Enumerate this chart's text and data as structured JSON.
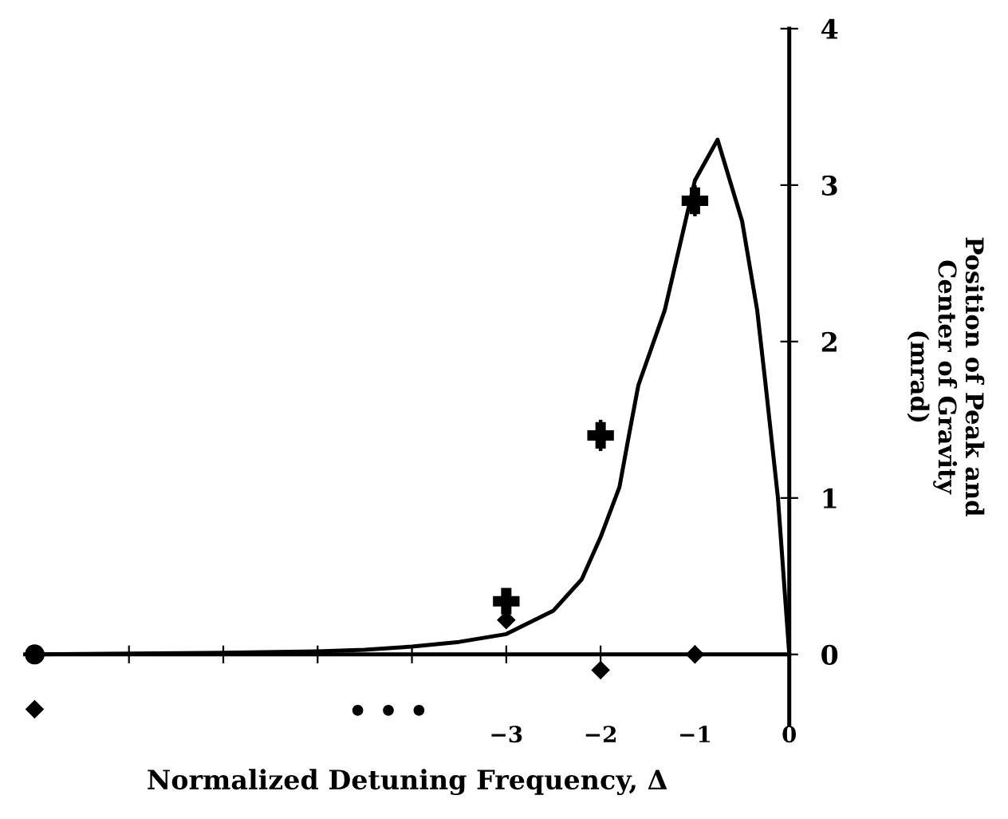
{
  "chart_data": {
    "type": "line",
    "xlabel": "Normalized Detuning Frequency, Δ",
    "ylabel": "Position of Peak and\nCenter of Gravity\n(mrad)",
    "series": [
      {
        "color": "#000000",
        "marker": "none",
        "line_style": "solid",
        "x": [
          -8,
          -6,
          -5,
          -4.5,
          -4,
          -3.5,
          -3,
          -2.5,
          -2.2,
          -2,
          -1.8,
          -1.7,
          -1.6,
          -1.32,
          -1,
          -0.76,
          -0.5,
          -0.34,
          -0.25,
          -0.12,
          0
        ],
        "values": [
          0,
          0.01,
          0.02,
          0.03,
          0.05,
          0.08,
          0.13,
          0.28,
          0.48,
          0.75,
          1.07,
          1.4,
          1.72,
          2.2,
          3.03,
          3.29,
          2.77,
          2.2,
          1.72,
          1.0,
          0
        ]
      },
      {
        "type": "scatter",
        "color": "#000000",
        "marker": "cross",
        "x": [
          -3,
          -2,
          -1
        ],
        "values": [
          0.34,
          1.4,
          2.9
        ],
        "errors": [
          0.08,
          0.1,
          0.1
        ]
      },
      {
        "type": "scatter",
        "color": "#000000",
        "marker": "diamond",
        "x": [
          -8,
          -3,
          -2,
          -1
        ],
        "values": [
          -0.35,
          0.22,
          -0.1,
          0.0
        ]
      },
      {
        "type": "scatter",
        "color": "#000000",
        "marker": "circle",
        "x": [
          -8
        ],
        "values": [
          0
        ]
      }
    ],
    "annotations": [
      "• • •"
    ],
    "xlim": [
      -8.1,
      0
    ],
    "xticks": [
      {
        "value": -8,
        "label": null
      },
      {
        "value": -7,
        "label": null
      },
      {
        "value": -6,
        "label": null
      },
      {
        "value": -5,
        "label": null
      },
      {
        "value": -4,
        "label": null
      },
      {
        "value": -3,
        "label": "−3"
      },
      {
        "value": -2,
        "label": "−2"
      },
      {
        "value": -1,
        "label": "−1"
      },
      0
    ],
    "ylim": [
      -0.45,
      4
    ],
    "yticks": [
      0,
      1,
      2,
      3,
      4
    ],
    "legend": false
  }
}
